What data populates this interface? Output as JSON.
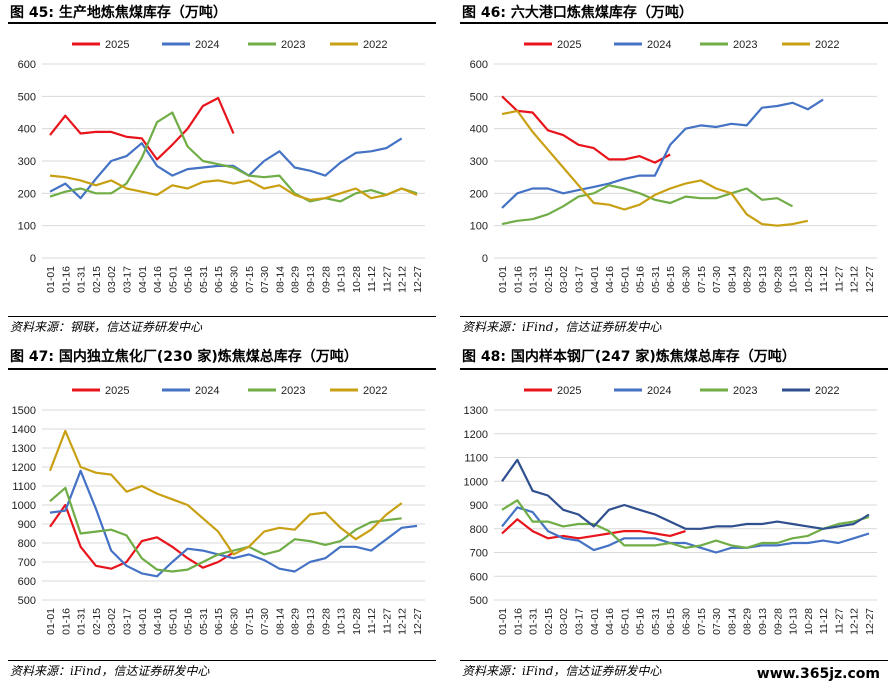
{
  "colors": {
    "s2025": "#e8141c",
    "s2024": "#4472c4",
    "s2023": "#70ad47",
    "s2022": "#c9a013",
    "s2022b": "#2f4f8f"
  },
  "watermark": "www.365jz.com",
  "xcats": [
    "01-01",
    "01-16",
    "01-31",
    "02-15",
    "03-02",
    "03-17",
    "04-01",
    "04-16",
    "05-01",
    "05-16",
    "05-31",
    "06-15",
    "06-30",
    "07-15",
    "07-30",
    "08-14",
    "08-29",
    "09-13",
    "09-28",
    "10-13",
    "10-28",
    "11-12",
    "11-27",
    "12-12",
    "12-27"
  ],
  "panels": [
    {
      "title": "图 45: 生产地炼焦煤库存（万吨）",
      "source": "资料来源：钢联，信达证券研发中心",
      "chart_data": {
        "type": "line",
        "ylim": [
          0,
          600
        ],
        "yticks": [
          0,
          100,
          200,
          300,
          400,
          500,
          600
        ],
        "series": [
          {
            "name": "2025",
            "color": "#e8141c",
            "values": [
              380,
              440,
              385,
              390,
              390,
              375,
              370,
              305,
              350,
              400,
              470,
              495,
              385
            ]
          },
          {
            "name": "2024",
            "color": "#4472c4",
            "values": [
              205,
              230,
              185,
              245,
              300,
              315,
              355,
              285,
              255,
              275,
              280,
              285,
              285,
              255,
              300,
              330,
              280,
              270,
              255,
              295,
              325,
              330,
              340,
              370
            ]
          },
          {
            "name": "2023",
            "color": "#70ad47",
            "values": [
              190,
              205,
              215,
              200,
              200,
              230,
              310,
              420,
              450,
              345,
              300,
              290,
              280,
              255,
              250,
              255,
              200,
              175,
              185,
              175,
              200,
              210,
              195,
              215,
              200
            ]
          },
          {
            "name": "2022",
            "color": "#c9a013",
            "values": [
              255,
              250,
              240,
              225,
              240,
              215,
              205,
              195,
              225,
              215,
              235,
              240,
              230,
              240,
              215,
              225,
              195,
              180,
              185,
              200,
              215,
              185,
              195,
              215,
              195
            ]
          }
        ]
      }
    },
    {
      "title": "图 46: 六大港口炼焦煤库存（万吨）",
      "source": "资料来源：iFind，信达证券研发中心",
      "chart_data": {
        "type": "line",
        "ylim": [
          0,
          600
        ],
        "yticks": [
          0,
          100,
          200,
          300,
          400,
          500,
          600
        ],
        "series": [
          {
            "name": "2025",
            "color": "#e8141c",
            "values": [
              500,
              455,
              450,
              395,
              380,
              350,
              340,
              305,
              305,
              315,
              295,
              320
            ]
          },
          {
            "name": "2024",
            "color": "#4472c4",
            "values": [
              155,
              200,
              215,
              215,
              200,
              210,
              220,
              230,
              245,
              255,
              255,
              350,
              400,
              410,
              405,
              415,
              410,
              465,
              470,
              480,
              460,
              490
            ]
          },
          {
            "name": "2023",
            "color": "#70ad47",
            "values": [
              105,
              115,
              120,
              135,
              160,
              190,
              200,
              225,
              215,
              200,
              180,
              170,
              190,
              185,
              185,
              200,
              215,
              180,
              185,
              160
            ]
          },
          {
            "name": "2022",
            "color": "#c9a013",
            "values": [
              445,
              455,
              390,
              335,
              280,
              225,
              170,
              165,
              150,
              165,
              195,
              215,
              230,
              240,
              215,
              200,
              135,
              105,
              100,
              105,
              115
            ]
          }
        ]
      }
    },
    {
      "title": "图 47: 国内独立焦化厂(230 家)炼焦煤总库存（万吨）",
      "source": "资料来源：iFind，信达证券研发中心",
      "chart_data": {
        "type": "line",
        "ylim": [
          500,
          1500
        ],
        "yticks": [
          500,
          600,
          700,
          800,
          900,
          1000,
          1100,
          1200,
          1300,
          1400,
          1500
        ],
        "series": [
          {
            "name": "2025",
            "color": "#e8141c",
            "values": [
              885,
              1000,
              780,
              680,
              665,
              700,
              810,
              830,
              780,
              720,
              670,
              700,
              750
            ]
          },
          {
            "name": "2024",
            "color": "#4472c4",
            "values": [
              960,
              970,
              1180,
              980,
              760,
              680,
              640,
              625,
              700,
              770,
              760,
              740,
              720,
              740,
              710,
              665,
              650,
              700,
              720,
              780,
              780,
              760,
              820,
              880,
              890
            ]
          },
          {
            "name": "2023",
            "color": "#70ad47",
            "values": [
              1020,
              1090,
              850,
              860,
              870,
              840,
              720,
              660,
              650,
              660,
              700,
              740,
              760,
              780,
              740,
              760,
              820,
              810,
              790,
              810,
              870,
              910,
              920,
              930
            ]
          },
          {
            "name": "2022",
            "color": "#c9a013",
            "values": [
              1180,
              1390,
              1200,
              1170,
              1160,
              1070,
              1100,
              1060,
              1030,
              1000,
              930,
              860,
              740,
              780,
              860,
              880,
              870,
              950,
              960,
              880,
              820,
              870,
              950,
              1010
            ]
          }
        ]
      }
    },
    {
      "title": "图 48: 国内样本钢厂(247 家)炼焦煤总库存（万吨）",
      "source": "资料来源：iFind，信达证券研发中心",
      "chart_data": {
        "type": "line",
        "ylim": [
          500,
          1300
        ],
        "yticks": [
          500,
          600,
          700,
          800,
          900,
          1000,
          1100,
          1200,
          1300
        ],
        "series": [
          {
            "name": "2025",
            "color": "#e8141c",
            "values": [
              780,
              840,
              790,
              760,
              770,
              760,
              770,
              780,
              790,
              790,
              780,
              770,
              790
            ]
          },
          {
            "name": "2024",
            "color": "#4472c4",
            "values": [
              810,
              890,
              870,
              790,
              760,
              750,
              710,
              730,
              760,
              760,
              760,
              740,
              740,
              720,
              700,
              720,
              720,
              730,
              730,
              740,
              740,
              750,
              740,
              760,
              780
            ]
          },
          {
            "name": "2023",
            "color": "#70ad47",
            "values": [
              880,
              920,
              830,
              830,
              810,
              820,
              820,
              790,
              730,
              730,
              730,
              740,
              720,
              730,
              750,
              730,
              720,
              740,
              740,
              760,
              770,
              800,
              820,
              830,
              850
            ]
          },
          {
            "name": "2022",
            "color": "#2f4f8f",
            "values": [
              1000,
              1090,
              960,
              940,
              880,
              860,
              810,
              880,
              900,
              880,
              860,
              830,
              800,
              800,
              810,
              810,
              820,
              820,
              830,
              820,
              810,
              800,
              810,
              820,
              860
            ]
          }
        ]
      }
    }
  ],
  "legend_labels": [
    "2025",
    "2024",
    "2023",
    "2022"
  ]
}
